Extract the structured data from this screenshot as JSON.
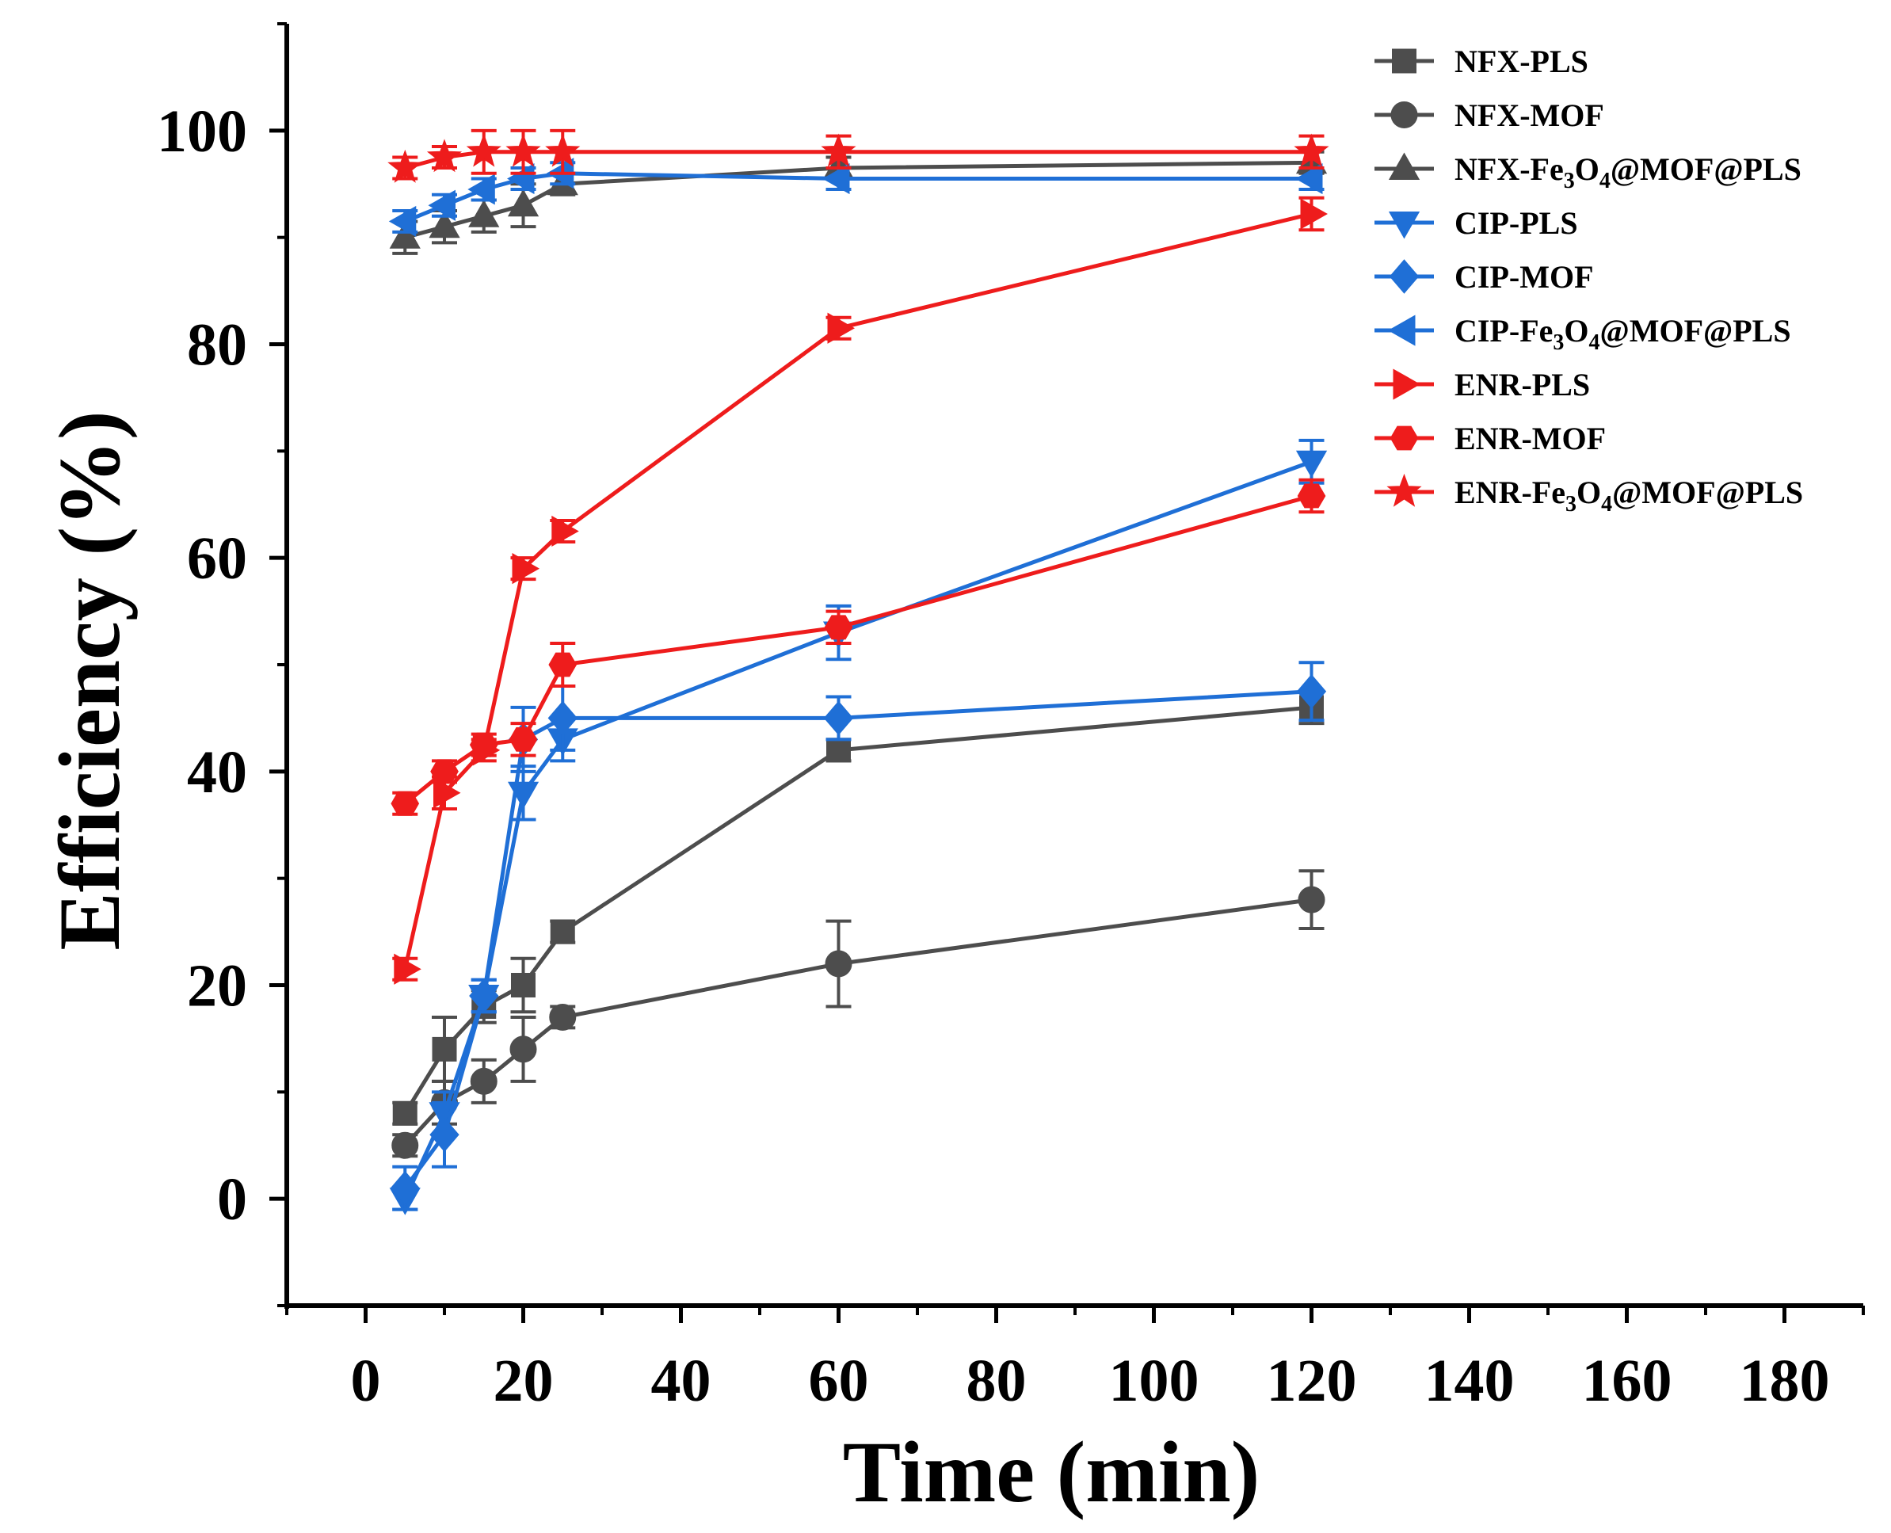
{
  "chart_data": {
    "type": "line",
    "title": "",
    "xlabel": "Time (min)",
    "ylabel": "Efficiency (%)",
    "xlim": [
      -10,
      190
    ],
    "ylim": [
      -10,
      110
    ],
    "xticks": [
      0,
      20,
      40,
      60,
      80,
      100,
      120,
      140,
      160,
      180
    ],
    "yticks": [
      0,
      20,
      40,
      60,
      80,
      100
    ],
    "legend_position": "top-right",
    "x": [
      5,
      10,
      15,
      20,
      25,
      60,
      120
    ],
    "series": [
      {
        "name": "NFX-PLS",
        "legend_parts": [
          "NFX-PLS"
        ],
        "color": "#4d4d4d",
        "marker": "square",
        "values": [
          8,
          14,
          18,
          20,
          25,
          42,
          46
        ],
        "errors": [
          1,
          3,
          1.5,
          2.5,
          1,
          1,
          1.5
        ]
      },
      {
        "name": "NFX-MOF",
        "legend_parts": [
          "NFX-MOF"
        ],
        "color": "#4d4d4d",
        "marker": "circle",
        "values": [
          5,
          9,
          11,
          14,
          17,
          22,
          28
        ],
        "errors": [
          1,
          2,
          2,
          3,
          1,
          4,
          2.7
        ]
      },
      {
        "name": "NFX-Fe3O4@MOF@PLS",
        "legend_parts": [
          "NFX-Fe",
          "3",
          "O",
          "4",
          "@MOF@PLS"
        ],
        "color": "#4d4d4d",
        "marker": "triangle-up",
        "values": [
          90,
          91,
          92,
          93,
          95,
          96.5,
          97
        ],
        "errors": [
          1.5,
          1.5,
          1.5,
          2,
          1,
          1,
          1
        ]
      },
      {
        "name": "CIP-PLS",
        "legend_parts": [
          "CIP-PLS"
        ],
        "color": "#1f6fd6",
        "marker": "triangle-down",
        "values": [
          0,
          8,
          19,
          38,
          43,
          53,
          69
        ],
        "errors": [
          1,
          2,
          1.5,
          2.5,
          2,
          2.5,
          2
        ]
      },
      {
        "name": "CIP-MOF",
        "legend_parts": [
          "CIP-MOF"
        ],
        "color": "#1f6fd6",
        "marker": "diamond",
        "values": [
          1,
          6,
          19,
          43,
          45,
          45,
          47.5
        ],
        "errors": [
          2,
          3,
          1.5,
          3,
          3,
          2,
          2.7
        ]
      },
      {
        "name": "CIP-Fe3O4@MOF@PLS",
        "legend_parts": [
          "CIP-Fe",
          "3",
          "O",
          "4",
          "@MOF@PLS"
        ],
        "color": "#1f6fd6",
        "marker": "triangle-left",
        "values": [
          91.5,
          93,
          94.5,
          95.5,
          96,
          95.5,
          95.5
        ],
        "errors": [
          1,
          1,
          1,
          1,
          1,
          1,
          1
        ]
      },
      {
        "name": "ENR-PLS",
        "legend_parts": [
          "ENR-PLS"
        ],
        "color": "#ee1c1c",
        "marker": "triangle-right",
        "values": [
          21.5,
          38,
          42,
          59,
          62.5,
          81.5,
          92.2
        ],
        "errors": [
          1,
          1.5,
          1,
          1,
          1,
          1,
          1.5
        ]
      },
      {
        "name": "ENR-MOF",
        "legend_parts": [
          "ENR-MOF"
        ],
        "color": "#ee1c1c",
        "marker": "hexagon",
        "values": [
          37,
          40,
          42.5,
          43,
          50,
          53.5,
          65.8
        ],
        "errors": [
          1,
          1,
          1,
          1.5,
          2,
          1.5,
          1.5
        ]
      },
      {
        "name": "ENR-Fe3O4@MOF@PLS",
        "legend_parts": [
          "ENR-Fe",
          "3",
          "O",
          "4",
          "@MOF@PLS"
        ],
        "color": "#ee1c1c",
        "marker": "star",
        "values": [
          96.5,
          97.5,
          98,
          98,
          98,
          98,
          98
        ],
        "errors": [
          1,
          1,
          2,
          2,
          2,
          1.5,
          1.5
        ]
      }
    ]
  }
}
